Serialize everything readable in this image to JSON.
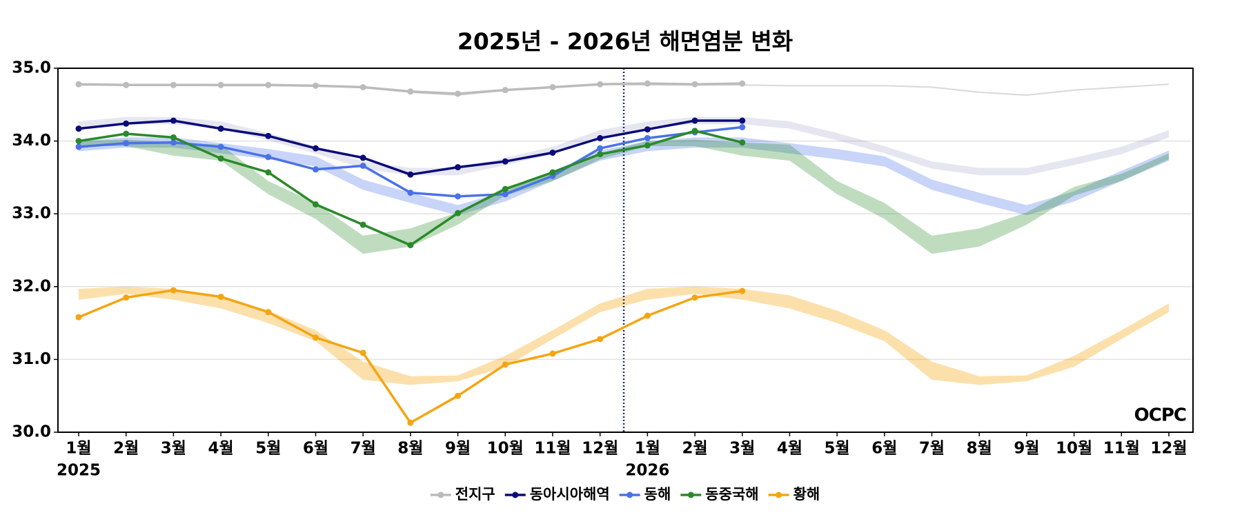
{
  "chart_data": {
    "type": "line",
    "title": "2025년 - 2026년 해면염분 변화",
    "categories": [
      "1월",
      "2월",
      "3월",
      "4월",
      "5월",
      "6월",
      "7월",
      "8월",
      "9월",
      "10월",
      "11월",
      "12월",
      "1월",
      "2월",
      "3월",
      "4월",
      "5월",
      "6월",
      "7월",
      "8월",
      "9월",
      "10월",
      "11월",
      "12월"
    ],
    "year_labels": [
      "2025",
      null,
      null,
      null,
      null,
      null,
      null,
      null,
      null,
      null,
      null,
      null,
      "2026",
      null,
      null,
      null,
      null,
      null,
      null,
      null,
      null,
      null,
      null,
      null
    ],
    "ylim": [
      30.0,
      35.0
    ],
    "yticks": [
      {
        "value": 30,
        "label": "30.0"
      },
      {
        "value": 31,
        "label": "31.0"
      },
      {
        "value": 32,
        "label": "32.0"
      },
      {
        "value": 33,
        "label": "33.0"
      },
      {
        "value": 34,
        "label": "34.0"
      },
      {
        "value": 35,
        "label": "35.0"
      }
    ],
    "grid": true,
    "legend": "bottom",
    "logo": "OCPC",
    "series": [
      {
        "name": "전지구",
        "color": "#bbbbbb",
        "band_opacity": 0.55,
        "values": [
          34.78,
          34.77,
          34.77,
          34.77,
          34.77,
          34.76,
          34.74,
          34.68,
          34.65,
          34.7,
          34.74,
          34.78,
          34.79,
          34.78,
          34.79,
          null,
          null,
          null,
          null,
          null,
          null,
          null,
          null,
          null
        ],
        "band_low": [
          34.76,
          34.76,
          34.76,
          34.75,
          34.75,
          34.75,
          34.73,
          34.66,
          34.62,
          34.69,
          34.73,
          34.77,
          34.76,
          34.76,
          34.76,
          34.75,
          34.75,
          34.75,
          34.73,
          34.66,
          34.62,
          34.69,
          34.73,
          34.77
        ],
        "band_high": [
          34.78,
          34.78,
          34.78,
          34.77,
          34.77,
          34.77,
          34.75,
          34.68,
          34.64,
          34.71,
          34.75,
          34.79,
          34.78,
          34.78,
          34.78,
          34.77,
          34.77,
          34.77,
          34.75,
          34.68,
          34.64,
          34.71,
          34.75,
          34.79
        ]
      },
      {
        "name": "동아시아해역",
        "color": "#0a0a78",
        "band_opacity": 0.1,
        "values": [
          34.17,
          34.24,
          34.28,
          34.17,
          34.07,
          33.9,
          33.77,
          33.54,
          33.64,
          33.72,
          33.84,
          34.04,
          34.16,
          34.28,
          34.28,
          null,
          null,
          null,
          null,
          null,
          null,
          null,
          null,
          null
        ],
        "band_low": [
          34.17,
          34.23,
          34.23,
          34.17,
          34.01,
          33.83,
          33.62,
          33.53,
          33.53,
          33.67,
          33.82,
          34.05,
          34.17,
          34.23,
          34.23,
          34.17,
          34.01,
          33.83,
          33.62,
          33.53,
          33.53,
          33.67,
          33.82,
          34.05
        ],
        "band_high": [
          34.27,
          34.33,
          34.33,
          34.27,
          34.11,
          33.93,
          33.72,
          33.63,
          33.63,
          33.77,
          33.92,
          34.15,
          34.27,
          34.33,
          34.33,
          34.27,
          34.11,
          33.93,
          33.72,
          33.63,
          33.63,
          33.77,
          33.92,
          34.15
        ]
      },
      {
        "name": "동해",
        "color": "#4a72e8",
        "band_opacity": 0.3,
        "values": [
          33.92,
          33.97,
          33.98,
          33.92,
          33.78,
          33.61,
          33.66,
          33.29,
          33.24,
          33.27,
          33.52,
          33.9,
          34.04,
          34.12,
          34.19,
          null,
          null,
          null,
          null,
          null,
          null,
          null,
          null,
          null
        ],
        "band_low": [
          33.86,
          33.91,
          33.91,
          33.83,
          33.75,
          33.65,
          33.33,
          33.15,
          32.98,
          33.17,
          33.45,
          33.73,
          33.86,
          33.91,
          33.91,
          33.83,
          33.75,
          33.65,
          33.33,
          33.15,
          32.98,
          33.17,
          33.45,
          33.73
        ],
        "band_high": [
          34.0,
          34.05,
          34.05,
          33.97,
          33.89,
          33.79,
          33.47,
          33.29,
          33.12,
          33.31,
          33.59,
          33.87,
          34.0,
          34.05,
          34.05,
          33.97,
          33.89,
          33.79,
          33.47,
          33.29,
          33.12,
          33.31,
          33.59,
          33.87
        ]
      },
      {
        "name": "동중국해",
        "color": "#2a8a2a",
        "band_opacity": 0.3,
        "values": [
          34.0,
          34.1,
          34.05,
          33.76,
          33.57,
          33.13,
          32.85,
          32.57,
          33.01,
          33.34,
          33.57,
          33.82,
          33.94,
          34.14,
          33.98,
          null,
          null,
          null,
          null,
          null,
          null,
          null,
          null,
          null
        ],
        "band_low": [
          33.93,
          33.93,
          33.8,
          33.73,
          33.27,
          32.93,
          32.45,
          32.55,
          32.85,
          33.25,
          33.45,
          33.75,
          33.93,
          33.93,
          33.8,
          33.73,
          33.27,
          32.93,
          32.45,
          32.55,
          32.85,
          33.25,
          33.45,
          33.75
        ],
        "band_high": [
          34.0,
          34.02,
          33.98,
          33.95,
          33.45,
          33.15,
          32.7,
          32.8,
          33.02,
          33.37,
          33.55,
          33.83,
          34.0,
          34.02,
          33.98,
          33.95,
          33.45,
          33.15,
          32.7,
          32.8,
          33.02,
          33.37,
          33.55,
          33.83
        ]
      },
      {
        "name": "황해",
        "color": "#f5a511",
        "band_opacity": 0.35,
        "values": [
          31.58,
          31.85,
          31.95,
          31.86,
          31.65,
          31.3,
          31.09,
          30.13,
          30.5,
          30.93,
          31.08,
          31.28,
          31.6,
          31.85,
          31.94,
          null,
          null,
          null,
          null,
          null,
          null,
          null,
          null,
          null
        ],
        "band_low": [
          31.82,
          31.9,
          31.82,
          31.7,
          31.5,
          31.25,
          30.72,
          30.65,
          30.7,
          30.9,
          31.28,
          31.65,
          31.82,
          31.9,
          31.82,
          31.7,
          31.5,
          31.25,
          30.72,
          30.65,
          30.7,
          30.9,
          31.28,
          31.65
        ],
        "band_high": [
          31.97,
          32.0,
          31.97,
          31.88,
          31.67,
          31.4,
          30.97,
          30.77,
          30.78,
          31.05,
          31.4,
          31.77,
          31.97,
          32.0,
          31.97,
          31.88,
          31.67,
          31.4,
          30.97,
          30.77,
          30.78,
          31.05,
          31.4,
          31.77
        ]
      }
    ]
  }
}
